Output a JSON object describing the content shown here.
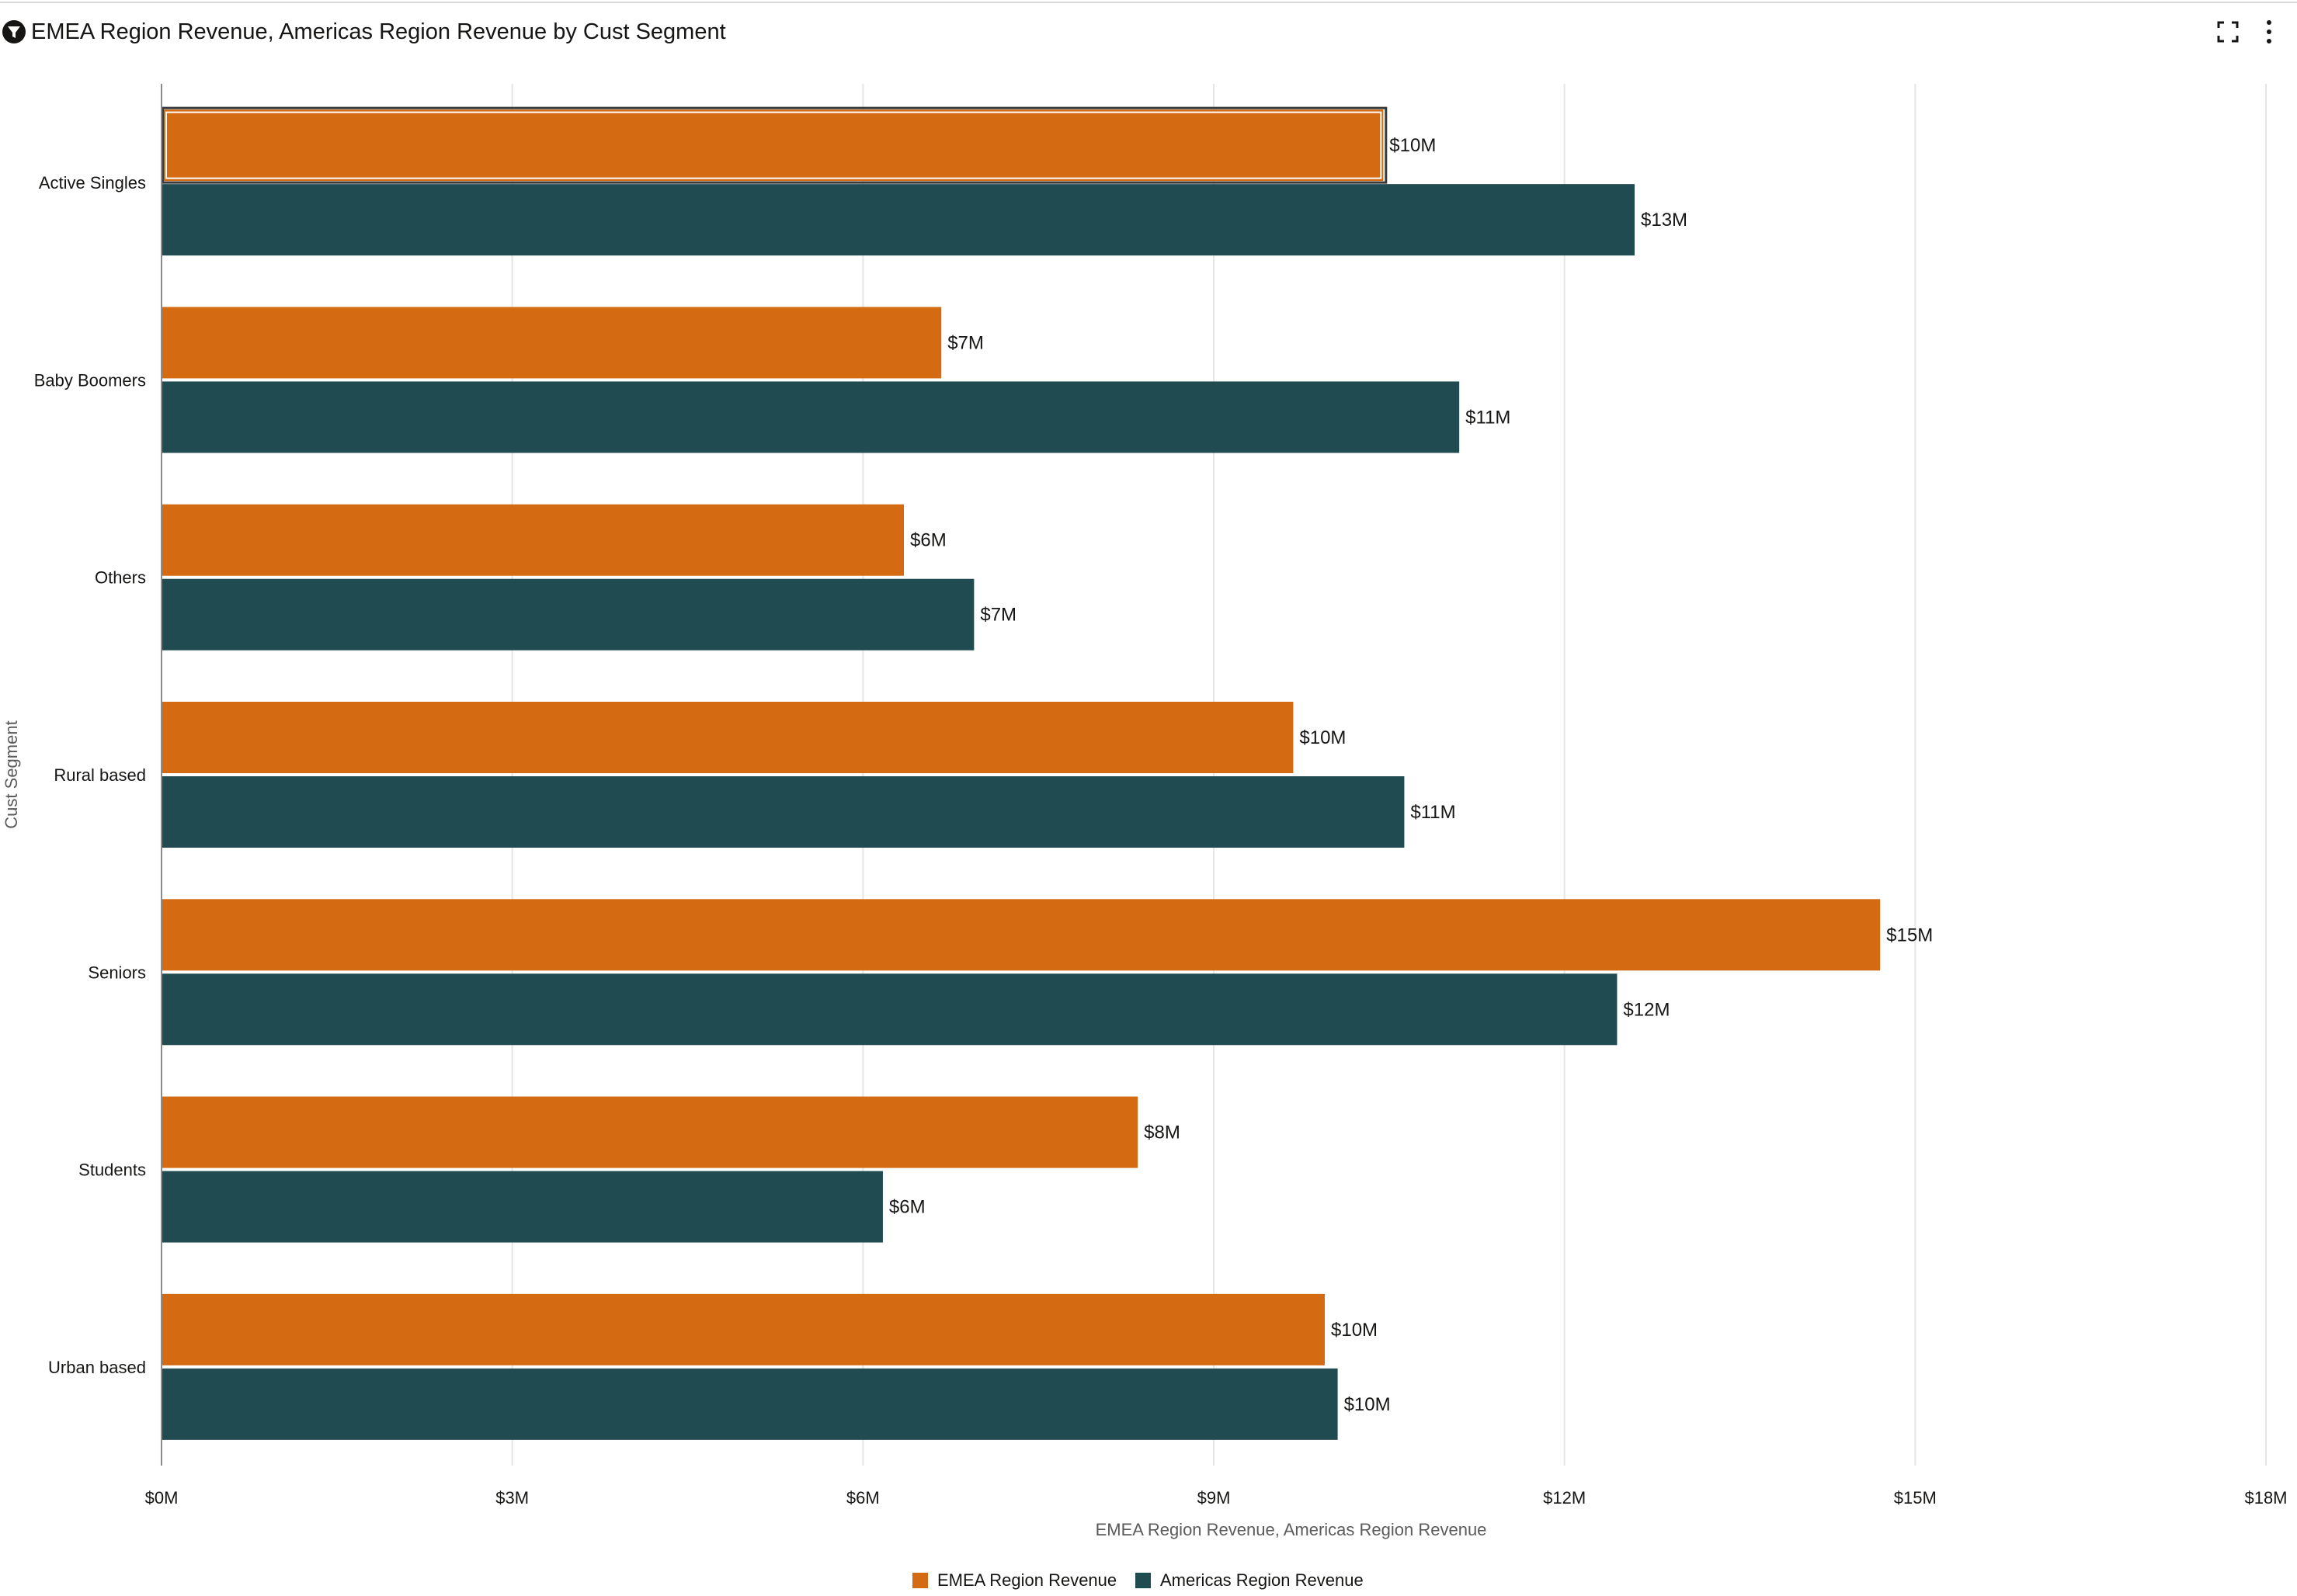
{
  "header": {
    "title": "EMEA Region Revenue, Americas Region Revenue by Cust Segment",
    "icons": {
      "title": "filter-icon",
      "fullscreen": "fullscreen-icon",
      "more": "more-options-icon"
    }
  },
  "chart_data": {
    "type": "bar",
    "orientation": "horizontal",
    "title": "EMEA Region Revenue, Americas Region Revenue by Cust Segment",
    "categories": [
      "Active Singles",
      "Baby Boomers",
      "Others",
      "Rural based",
      "Seniors",
      "Students",
      "Urban based"
    ],
    "series": [
      {
        "name": "EMEA Region Revenue",
        "color": "#d46b12",
        "values": [
          10.45,
          6.67,
          6.35,
          9.68,
          14.7,
          8.35,
          9.95
        ],
        "labels": [
          "$10M",
          "$7M",
          "$6M",
          "$10M",
          "$15M",
          "$8M",
          "$10M"
        ]
      },
      {
        "name": "Americas Region Revenue",
        "color": "#204b50",
        "values": [
          12.6,
          11.1,
          6.95,
          10.63,
          12.45,
          6.17,
          10.06
        ],
        "labels": [
          "$13M",
          "$11M",
          "$7M",
          "$11M",
          "$12M",
          "$6M",
          "$10M"
        ]
      }
    ],
    "value_unit": "millions USD",
    "xlim": [
      0,
      18
    ],
    "xticks": [
      0,
      3,
      6,
      9,
      12,
      15,
      18
    ],
    "xtick_labels": [
      "$0M",
      "$3M",
      "$6M",
      "$9M",
      "$12M",
      "$15M",
      "$18M"
    ],
    "xlabel": "EMEA Region Revenue, Americas Region Revenue",
    "ylabel": "Cust Segment",
    "grid": "vertical",
    "legend_position": "bottom-center",
    "selected": {
      "category": "Active Singles",
      "series": "EMEA Region Revenue"
    }
  }
}
